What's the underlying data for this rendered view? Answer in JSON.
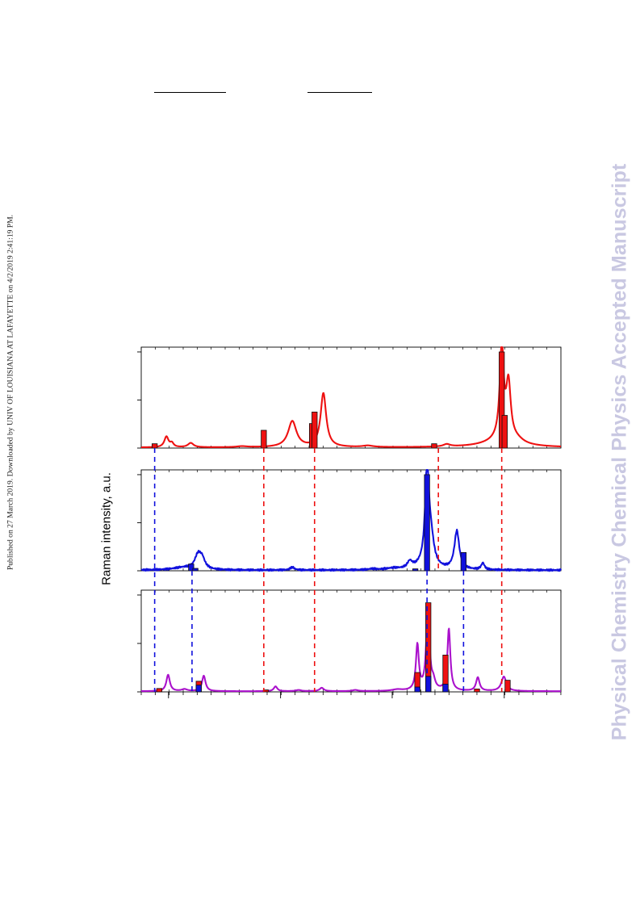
{
  "page": {
    "side_note": "Published on 27 March 2019. Downloaded by UNIV OF LOUISIANA AT LAFAYETTE on 4/2/2019 2:41:19 PM.",
    "watermark": "Physical Chemistry Chemical Physics Accepted Manuscript"
  },
  "figure": {
    "ylabel": "Raman intensity, a.u."
  },
  "colors": {
    "red": "#ee1111",
    "blue": "#1111dd",
    "purple": "#aa11cc",
    "bar_red": "#ee1111",
    "bar_blue": "#1111dd",
    "axis": "#000000"
  },
  "chart_data": {
    "type": "line",
    "x_range": [
      0,
      100
    ],
    "grid": false,
    "legend": "none",
    "panels": [
      {
        "name": "",
        "y_range": [
          0,
          1.05
        ],
        "series": [
          {
            "color": "red",
            "peaks": [
              {
                "x": 6.0,
                "h": 0.11,
                "w": 0.6
              },
              {
                "x": 7.3,
                "h": 0.04,
                "w": 0.5
              },
              {
                "x": 11.8,
                "h": 0.045,
                "w": 0.8
              },
              {
                "x": 24.0,
                "h": 0.01,
                "w": 1.5
              },
              {
                "x": 36.0,
                "h": 0.27,
                "w": 1.2
              },
              {
                "x": 43.4,
                "h": 0.56,
                "w": 0.8
              },
              {
                "x": 54.0,
                "h": 0.015,
                "w": 1.5
              },
              {
                "x": 72.8,
                "h": 0.025,
                "w": 1.0
              },
              {
                "x": 85.0,
                "h": 0.01,
                "w": 1.5
              },
              {
                "x": 85.5,
                "h": 0.06,
                "w": 5.0
              },
              {
                "x": 85.9,
                "h": 0.98,
                "w": 0.55
              },
              {
                "x": 87.5,
                "h": 0.58,
                "w": 0.65
              },
              {
                "x": 89.5,
                "h": 0.04,
                "w": 2.0
              }
            ]
          }
        ],
        "sticks": [
          {
            "x": 3.2,
            "h": 0.045,
            "color": "bar_red"
          },
          {
            "x": 29.2,
            "h": 0.185,
            "color": "bar_red"
          },
          {
            "x": 40.7,
            "h": 0.255,
            "color": "bar_red"
          },
          {
            "x": 41.3,
            "h": 0.375,
            "color": "bar_red"
          },
          {
            "x": 69.8,
            "h": 0.045,
            "color": "bar_red"
          },
          {
            "x": 85.9,
            "h": 1.0,
            "color": "bar_red"
          },
          {
            "x": 86.6,
            "h": 0.34,
            "color": "bar_red"
          }
        ],
        "guides": []
      },
      {
        "name": "",
        "y_range": [
          0,
          1.05
        ],
        "series": [
          {
            "color": "blue",
            "peaks": [
              {
                "x": 10.0,
                "h": 0.025,
                "w": 3.0
              },
              {
                "x": 13.5,
                "h": 0.14,
                "w": 0.9
              },
              {
                "x": 14.5,
                "h": 0.1,
                "w": 0.8
              },
              {
                "x": 36.0,
                "h": 0.03,
                "w": 0.6
              },
              {
                "x": 55.0,
                "h": 0.01,
                "w": 1.0
              },
              {
                "x": 60.0,
                "h": 0.015,
                "w": 2.0
              },
              {
                "x": 64.0,
                "h": 0.07,
                "w": 0.7
              },
              {
                "x": 67.0,
                "h": 0.03,
                "w": 2.0
              },
              {
                "x": 68.1,
                "h": 0.98,
                "w": 0.55
              },
              {
                "x": 69.0,
                "h": 0.28,
                "w": 0.9
              },
              {
                "x": 75.2,
                "h": 0.4,
                "w": 0.7
              },
              {
                "x": 81.4,
                "h": 0.07,
                "w": 0.45
              }
            ]
          }
        ],
        "sticks": [
          {
            "x": 11.9,
            "h": 0.07,
            "color": "bar_blue"
          },
          {
            "x": 12.9,
            "h": 0.025,
            "color": "bar_blue"
          },
          {
            "x": 65.3,
            "h": 0.02,
            "color": "bar_blue"
          },
          {
            "x": 68.1,
            "h": 1.0,
            "color": "bar_blue"
          },
          {
            "x": 76.8,
            "h": 0.19,
            "color": "bar_blue"
          }
        ],
        "guides": []
      },
      {
        "name": "",
        "y_range": [
          0,
          1.05
        ],
        "series": [
          {
            "color": "purple",
            "peaks": [
              {
                "x": 6.4,
                "h": 0.17,
                "w": 0.5
              },
              {
                "x": 10.3,
                "h": 0.02,
                "w": 0.8
              },
              {
                "x": 14.9,
                "h": 0.16,
                "w": 0.5
              },
              {
                "x": 32.0,
                "h": 0.05,
                "w": 0.5
              },
              {
                "x": 37.5,
                "h": 0.012,
                "w": 0.8
              },
              {
                "x": 43.0,
                "h": 0.035,
                "w": 0.6
              },
              {
                "x": 51.0,
                "h": 0.012,
                "w": 0.8
              },
              {
                "x": 61.0,
                "h": 0.015,
                "w": 1.5
              },
              {
                "x": 65.8,
                "h": 0.47,
                "w": 0.42
              },
              {
                "x": 68.3,
                "h": 0.88,
                "w": 0.45
              },
              {
                "x": 69.6,
                "h": 0.08,
                "w": 0.5
              },
              {
                "x": 73.3,
                "h": 0.64,
                "w": 0.42
              },
              {
                "x": 80.2,
                "h": 0.14,
                "w": 0.5
              },
              {
                "x": 86.4,
                "h": 0.15,
                "w": 0.7
              }
            ]
          }
        ],
        "sticks": [
          {
            "x": 4.3,
            "h": 0.035,
            "color": "bar_red"
          },
          {
            "x": 13.7,
            "h": 0.11,
            "color": "bar_red"
          },
          {
            "x": 13.7,
            "h": 0.07,
            "color": "bar_blue"
          },
          {
            "x": 29.7,
            "h": 0.02,
            "color": "bar_red"
          },
          {
            "x": 65.8,
            "h": 0.2,
            "color": "bar_red"
          },
          {
            "x": 65.8,
            "h": 0.05,
            "color": "bar_blue"
          },
          {
            "x": 68.4,
            "h": 0.92,
            "color": "bar_red"
          },
          {
            "x": 68.4,
            "h": 0.16,
            "color": "bar_blue"
          },
          {
            "x": 72.5,
            "h": 0.38,
            "color": "bar_red"
          },
          {
            "x": 72.5,
            "h": 0.08,
            "color": "bar_blue"
          },
          {
            "x": 80.0,
            "h": 0.03,
            "color": "bar_red"
          },
          {
            "x": 87.3,
            "h": 0.12,
            "color": "bar_red"
          }
        ],
        "guides": []
      }
    ],
    "guides": [
      {
        "x": 3.2,
        "color": "blue",
        "span": [
          0,
          2
        ]
      },
      {
        "x": 29.2,
        "color": "red",
        "span": [
          0,
          2
        ]
      },
      {
        "x": 41.3,
        "color": "red",
        "span": [
          0,
          2
        ]
      },
      {
        "x": 70.8,
        "color": "red",
        "span": [
          0,
          1
        ]
      },
      {
        "x": 85.9,
        "color": "red",
        "span": [
          0,
          2
        ]
      },
      {
        "x": 12.1,
        "color": "blue",
        "span": [
          1,
          2
        ]
      },
      {
        "x": 68.1,
        "color": "blue",
        "span": [
          1,
          2
        ]
      },
      {
        "x": 76.8,
        "color": "blue",
        "span": [
          1,
          2
        ]
      }
    ],
    "x_ticks_major": [
      6.5,
      33.2,
      59.8,
      86.5
    ],
    "x_ticks_minor_step": 3.333,
    "y_ticks": [
      0,
      0.5,
      1.0
    ]
  }
}
